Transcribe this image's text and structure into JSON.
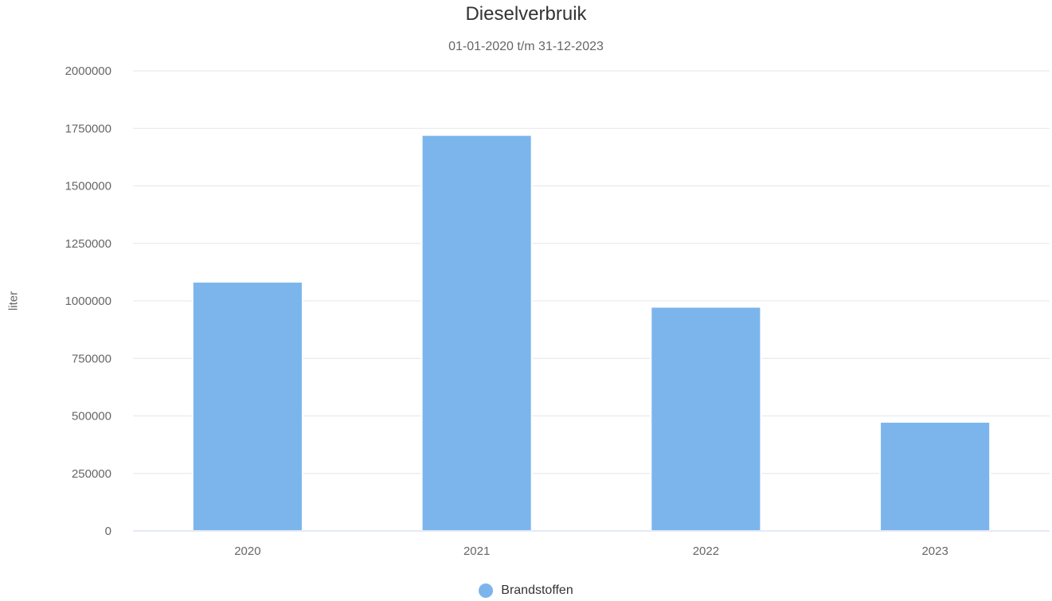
{
  "chart_data": {
    "type": "bar",
    "title": "Dieselverbruik",
    "subtitle": "01-01-2020 t/m 31-12-2023",
    "ylabel": "liter",
    "xlabel": "",
    "categories": [
      "2020",
      "2021",
      "2022",
      "2023"
    ],
    "series": [
      {
        "name": "Brandstoffen",
        "values": [
          1083000,
          1721000,
          974000,
          474000
        ],
        "color": "#7cb5ec"
      }
    ],
    "ylim": [
      0,
      2000000
    ],
    "yticks": [
      "0",
      "250000",
      "500000",
      "750000",
      "1000000",
      "1250000",
      "1500000",
      "1750000",
      "2000000"
    ],
    "grid": true,
    "legend_position": "bottom-center"
  }
}
